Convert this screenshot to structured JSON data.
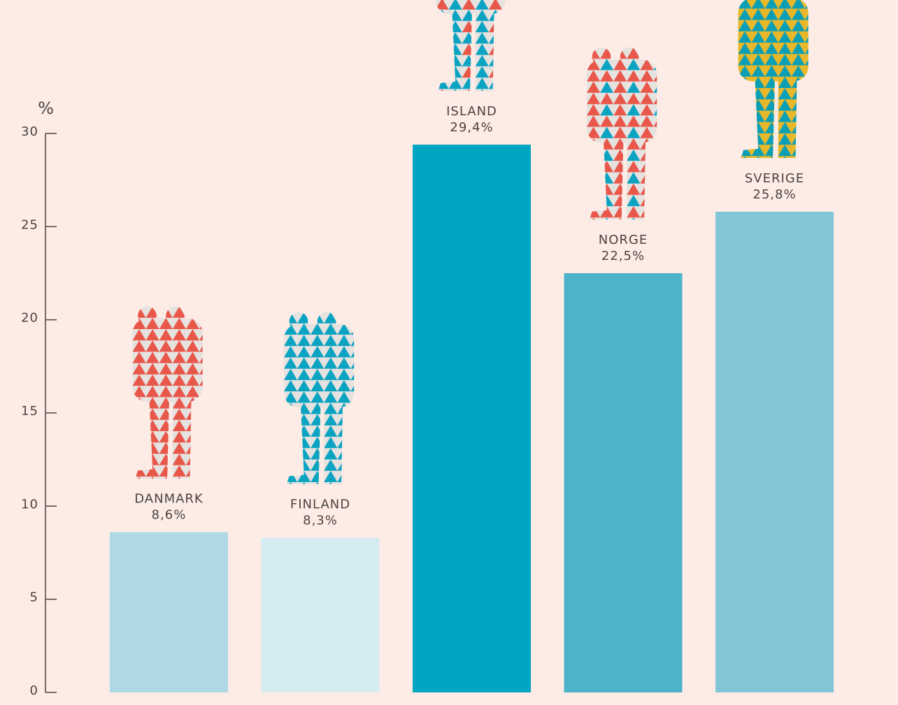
{
  "chart_data": {
    "type": "bar",
    "y_label": "%",
    "categories": [
      "DANMARK",
      "FINLAND",
      "ISLAND",
      "NORGE",
      "SVERIGE"
    ],
    "values": [
      8.6,
      8.3,
      29.4,
      22.5,
      25.8
    ],
    "value_labels": [
      "8,6%",
      "8,3%",
      "29,4%",
      "22,5%",
      "25,8%"
    ],
    "colors": [
      "#add8e4",
      "#d4ecf0",
      "#00a5c1",
      "#4db3c9",
      "#82c5d6"
    ],
    "ylim": [
      0,
      30
    ],
    "yticks": [
      0,
      5,
      10,
      15,
      20,
      25,
      30
    ]
  }
}
